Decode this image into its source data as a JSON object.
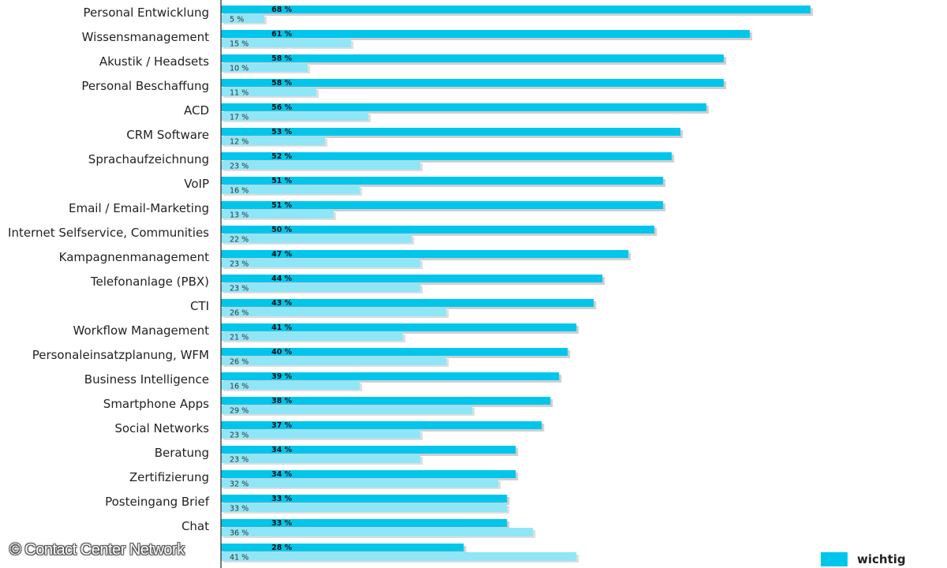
{
  "chart_data": {
    "type": "bar",
    "orientation": "horizontal",
    "categories": [
      "Personal Entwicklung",
      "Wissensmanagement",
      "Akustik / Headsets",
      "Personal Beschaffung",
      "ACD",
      "CRM Software",
      "Sprachaufzeichnung",
      "VoIP",
      "Email / Email-Marketing",
      "Internet Selfservice, Communities",
      "Kampagnenmanagement",
      "Telefonanlage (PBX)",
      "CTI",
      "Workflow Management",
      "Personaleinsatzplanung, WFM",
      "Business Intelligence",
      "Smartphone  Apps",
      "Social Networks",
      "Beratung",
      "Zertifizierung",
      "Posteingang Brief",
      "Chat",
      ""
    ],
    "series": [
      {
        "name": "wichtig",
        "color": "#00c6ec",
        "values": [
          68,
          61,
          58,
          58,
          56,
          53,
          52,
          51,
          51,
          50,
          47,
          44,
          43,
          41,
          40,
          39,
          38,
          37,
          34,
          34,
          33,
          33,
          28
        ],
        "labels": [
          "68 %",
          "61 %",
          "58 %",
          "58 %",
          "56 %",
          "53 %",
          "52 %",
          "51 %",
          "51 %",
          "50 %",
          "47 %",
          "44 %",
          "43 %",
          "41 %",
          "40 %",
          "39 %",
          "38 %",
          "37 %",
          "34 %",
          "34 %",
          "33 %",
          "33 %",
          "28 %"
        ]
      },
      {
        "color": "#8fe6f7",
        "values": [
          5,
          15,
          10,
          11,
          17,
          12,
          23,
          16,
          13,
          22,
          23,
          23,
          26,
          21,
          26,
          16,
          29,
          23,
          23,
          32,
          33,
          36,
          41
        ],
        "labels": [
          "5 %",
          "15 %",
          "10 %",
          "11 %",
          "17 %",
          "12 %",
          "23 %",
          "16 %",
          "13 %",
          "22 %",
          "23 %",
          "23 %",
          "26 %",
          "21 %",
          "26 %",
          "16 %",
          "29 %",
          "23 %",
          "23 %",
          "32 %",
          "33 %",
          "36 %",
          "41 %"
        ]
      }
    ],
    "xlim": [
      0,
      68
    ]
  },
  "watermark": "© Contact Center Network",
  "legend": {
    "label": "wichtig"
  }
}
